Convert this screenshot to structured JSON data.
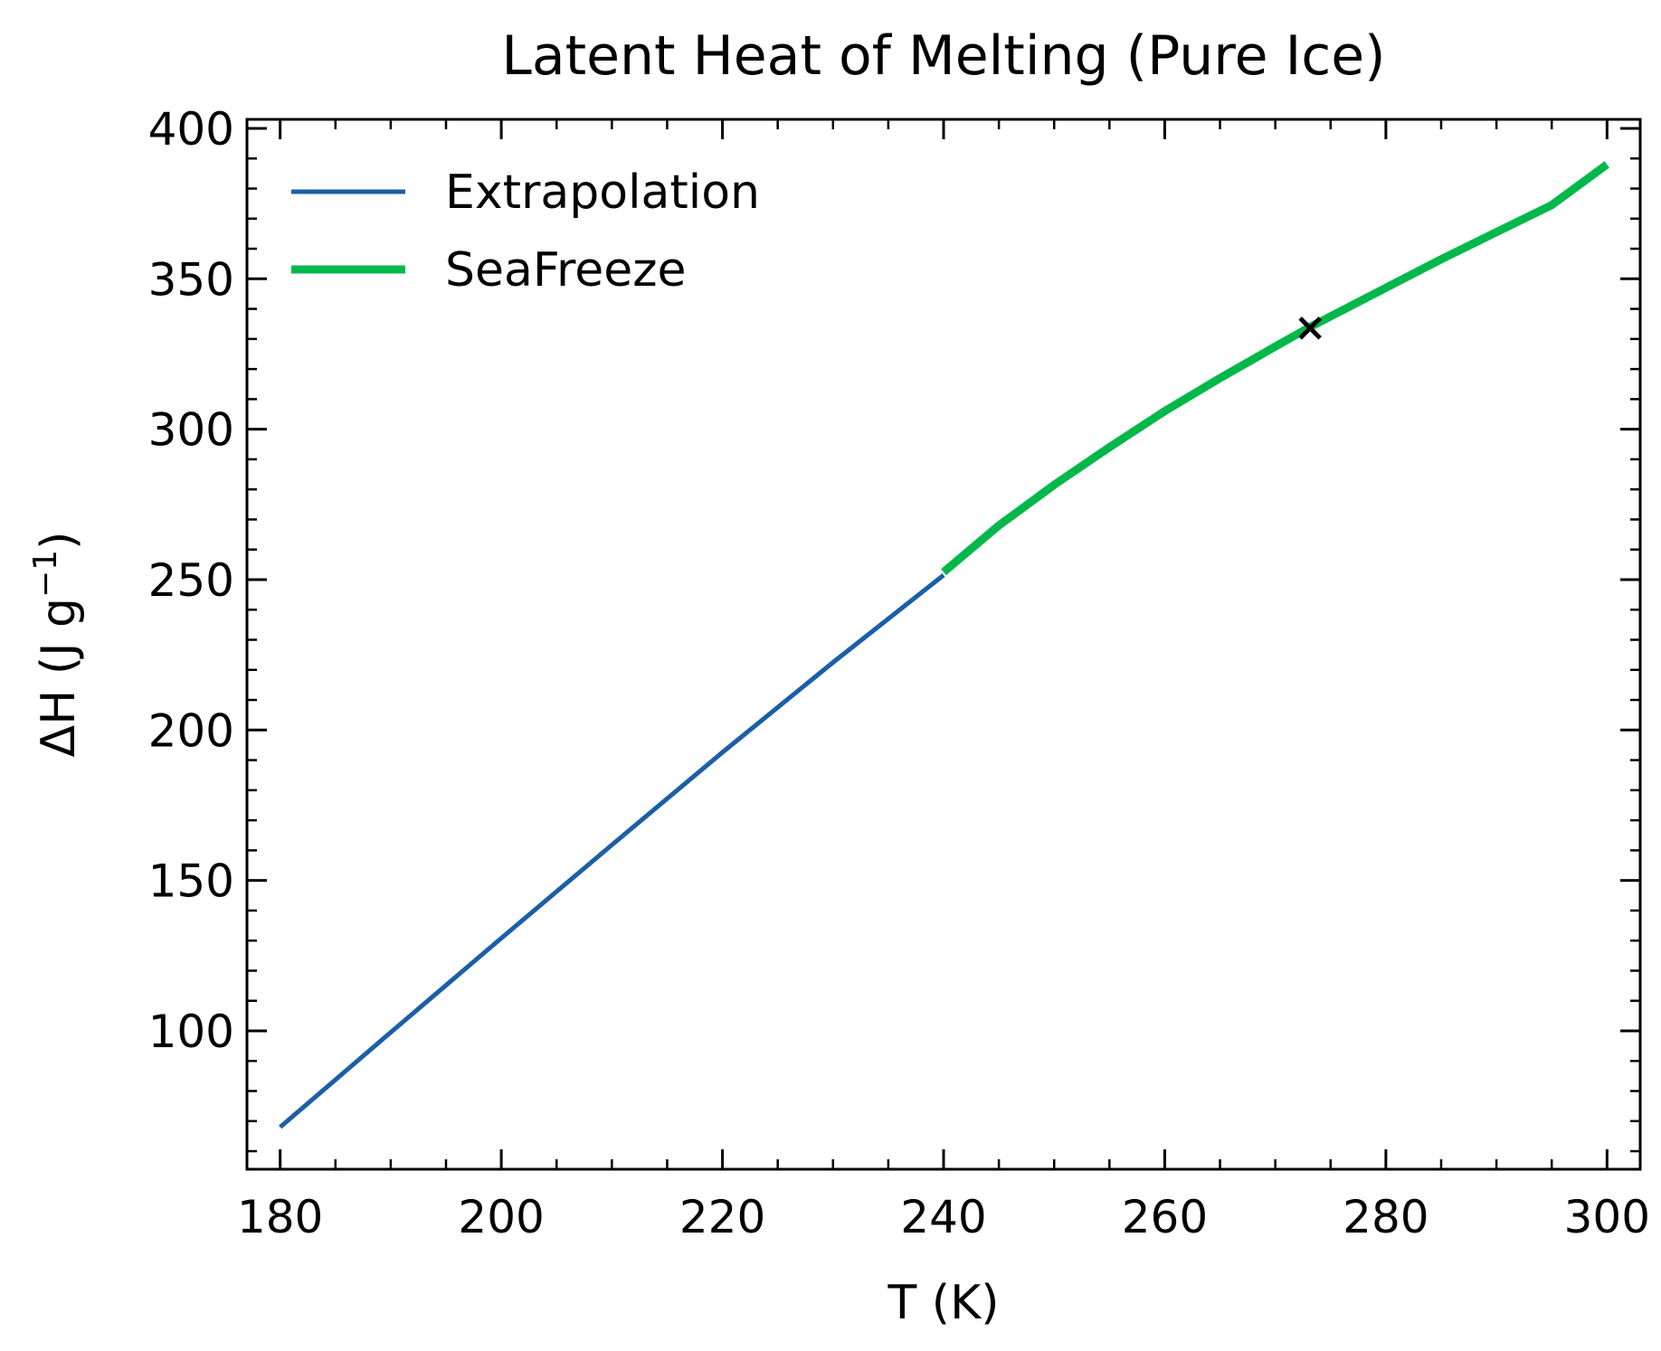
{
  "chart_data": {
    "type": "line",
    "title": "Latent Heat of Melting (Pure Ice)",
    "xlabel": "T (K)",
    "ylabel": "ΔH (J g",
    "ylabel_superscript": "−1",
    "ylabel_suffix": ")",
    "xlim": [
      177,
      303
    ],
    "ylim": [
      54,
      403
    ],
    "x_ticks": [
      180,
      200,
      220,
      240,
      260,
      280,
      300
    ],
    "y_ticks": [
      100,
      150,
      200,
      250,
      300,
      350,
      400
    ],
    "x_tick_labels": [
      "180",
      "200",
      "220",
      "240",
      "260",
      "280",
      "300"
    ],
    "y_tick_labels": [
      "100",
      "150",
      "200",
      "250",
      "300",
      "350",
      "400"
    ],
    "grid": false,
    "legend": "top-left",
    "series": [
      {
        "name": "Extrapolation",
        "color": "#1a5fa8",
        "x": [
          180,
          190,
          200,
          210,
          220,
          230,
          240
        ],
        "y": [
          68,
          99.5,
          130.8,
          161.8,
          192.6,
          222.5,
          251.5
        ]
      },
      {
        "name": "SeaFreeze",
        "color": "#00b84a",
        "x": [
          240,
          245,
          250,
          255,
          260,
          265,
          270,
          273.15,
          275,
          280,
          285,
          290,
          295,
          300
        ],
        "y": [
          252.5,
          268,
          281.5,
          294,
          306,
          317,
          327.5,
          334,
          337.5,
          347,
          356.5,
          365.5,
          374.5,
          388
        ]
      }
    ],
    "markers": [
      {
        "x": 273.15,
        "y": 333.6,
        "symbol": "x",
        "color": "#000000"
      }
    ]
  }
}
